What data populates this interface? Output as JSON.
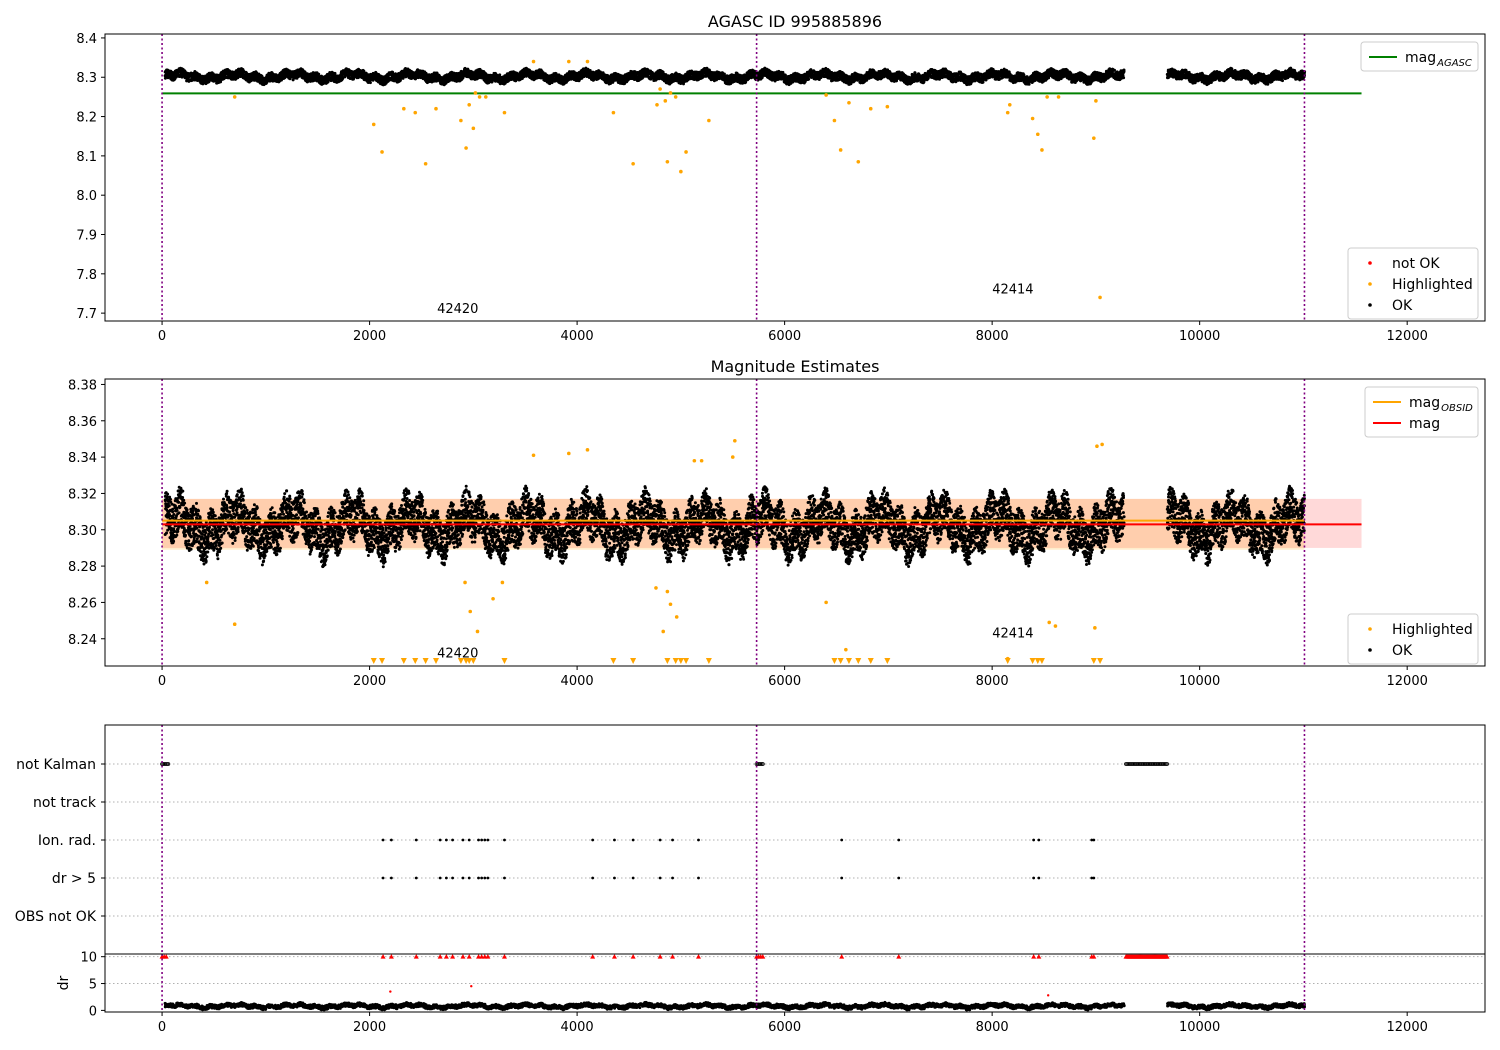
{
  "chart_data": [
    {
      "id": "p1",
      "type": "scatter",
      "title": "AGASC ID 995885896",
      "xlim": [
        -550,
        12750
      ],
      "ylim": [
        7.68,
        8.41
      ],
      "xticks": [
        0,
        2000,
        4000,
        6000,
        8000,
        10000,
        12000
      ],
      "yticks": [
        7.7,
        7.8,
        7.9,
        8.0,
        8.1,
        8.2,
        8.3,
        8.4
      ],
      "ytick_labels": [
        "7.7",
        "7.8",
        "7.9",
        "8.0",
        "8.1",
        "8.2",
        "8.3",
        "8.4"
      ],
      "grid": false,
      "vlines": [
        0,
        5730,
        11010
      ],
      "series_bands": [
        {
          "name": "OK",
          "color": "#000000",
          "x_ranges": [
            [
              30,
              9270
            ],
            [
              9690,
              11010
            ]
          ],
          "center": 8.302,
          "spread": 0.018
        }
      ],
      "hlines": [
        {
          "name": "mag_AGASC",
          "y": 8.259,
          "x_end": 11560,
          "color": "#008000"
        }
      ],
      "highlighted": {
        "color": "#ffa500",
        "x": [
          700,
          2040,
          2120,
          2330,
          2440,
          2540,
          2640,
          2880,
          2930,
          2960,
          3000,
          3020,
          3060,
          3120,
          3300,
          3580,
          3920,
          4100,
          4350,
          4540,
          4770,
          4800,
          4850,
          4870,
          4900,
          4950,
          5000,
          5050,
          5270,
          6400,
          6480,
          6540,
          6620,
          6710,
          6830,
          6990,
          8150,
          8170,
          8390,
          8440,
          8480,
          8530,
          8640,
          8980,
          9000,
          9040
        ],
        "y": [
          8.25,
          8.18,
          8.11,
          8.22,
          8.21,
          8.08,
          8.22,
          8.19,
          8.12,
          8.23,
          8.17,
          8.26,
          8.25,
          8.25,
          8.21,
          8.34,
          8.34,
          8.34,
          8.21,
          8.08,
          8.23,
          8.27,
          8.24,
          8.085,
          8.26,
          8.25,
          8.06,
          8.11,
          8.19,
          8.255,
          8.19,
          8.115,
          8.235,
          8.085,
          8.22,
          8.225,
          8.21,
          8.23,
          8.195,
          8.155,
          8.115,
          8.25,
          8.25,
          8.145,
          8.24,
          7.74
        ]
      },
      "not_ok": {
        "color": "#ff0000",
        "x": [],
        "y": []
      },
      "annotations": [
        {
          "text": "42420",
          "x": 2850,
          "y": 7.71
        },
        {
          "text": "42414",
          "x": 8200,
          "y": 7.76
        }
      ],
      "legend_top": [
        {
          "label": "mag",
          "sub": "AGASC",
          "color": "#008000",
          "kind": "line"
        }
      ],
      "legend_bottom": [
        {
          "label": "not OK",
          "color": "#ff0000"
        },
        {
          "label": "Highlighted",
          "color": "#ffa500"
        },
        {
          "label": "OK",
          "color": "#000000"
        }
      ]
    },
    {
      "id": "p2",
      "type": "scatter",
      "title": "Magnitude Estimates",
      "xlim": [
        -550,
        12750
      ],
      "ylim": [
        8.225,
        8.383
      ],
      "xticks": [
        0,
        2000,
        4000,
        6000,
        8000,
        10000,
        12000
      ],
      "yticks": [
        8.24,
        8.26,
        8.28,
        8.3,
        8.32,
        8.34,
        8.36,
        8.38
      ],
      "ytick_labels": [
        "8.24",
        "8.26",
        "8.28",
        "8.30",
        "8.32",
        "8.34",
        "8.36",
        "8.38"
      ],
      "grid": false,
      "vlines": [
        0,
        5730,
        11010
      ],
      "series_bands": [
        {
          "name": "OK",
          "color": "#000000",
          "x_ranges": [
            [
              30,
              9270
            ],
            [
              9690,
              11010
            ]
          ],
          "center": 8.302,
          "spread": 0.014
        }
      ],
      "bands": [
        {
          "name": "mag",
          "color": "#ff0000",
          "opacity": 0.15,
          "x0": 0,
          "x1": 11560,
          "y0": 8.29,
          "y1": 8.317
        },
        {
          "name": "mag_OBSID",
          "color": "#ffa500",
          "opacity": 0.2,
          "x0": 0,
          "x1": 11010,
          "y0": 8.289,
          "y1": 8.317
        }
      ],
      "hlines": [
        {
          "name": "mag",
          "y": 8.303,
          "x_end": 11560,
          "color": "#ff0000"
        },
        {
          "name": "mag_OBSID",
          "y": 8.305,
          "x_end": 11010,
          "color": "#ffa500"
        }
      ],
      "highlighted": {
        "color": "#ffa500",
        "x": [
          430,
          700,
          2920,
          2970,
          3040,
          3190,
          3280,
          3580,
          3920,
          4100,
          4760,
          4830,
          4870,
          4900,
          4960,
          5130,
          5200,
          5500,
          5520,
          6400,
          6590,
          8150,
          8550,
          8610,
          8990,
          9010,
          9060
        ],
        "y": [
          8.271,
          8.248,
          8.271,
          8.255,
          8.244,
          8.262,
          8.271,
          8.341,
          8.342,
          8.344,
          8.268,
          8.244,
          8.266,
          8.259,
          8.252,
          8.338,
          8.338,
          8.34,
          8.349,
          8.26,
          8.234,
          8.229,
          8.249,
          8.247,
          8.246,
          8.346,
          8.347
        ]
      },
      "below_markers": {
        "color": "#ffa500",
        "x": [
          2040,
          2120,
          2330,
          2440,
          2540,
          2640,
          2880,
          2930,
          2960,
          3000,
          3300,
          4350,
          4540,
          4870,
          4950,
          5000,
          5050,
          5270,
          6480,
          6540,
          6620,
          6710,
          6830,
          6990,
          8150,
          8390,
          8440,
          8480,
          8980,
          9040
        ]
      },
      "annotations": [
        {
          "text": "42420",
          "x": 2850,
          "y": 8.232
        },
        {
          "text": "42414",
          "x": 8200,
          "y": 8.243
        }
      ],
      "legend_top": [
        {
          "label": "mag",
          "sub": "OBSID",
          "color": "#ffa500",
          "kind": "line"
        },
        {
          "label": "mag",
          "sub": "",
          "color": "#ff0000",
          "kind": "line"
        }
      ],
      "legend_bottom": [
        {
          "label": "Highlighted",
          "color": "#ffa500"
        },
        {
          "label": "OK",
          "color": "#000000"
        }
      ]
    },
    {
      "id": "p3",
      "type": "scatter",
      "title": "",
      "xlim": [
        -550,
        12750
      ],
      "categories": [
        "not Kalman",
        "not track",
        "Ion. rad.",
        "dr > 5",
        "OBS not OK"
      ],
      "vlines": [
        0,
        5730,
        11010
      ],
      "flags": {
        "not Kalman": {
          "ranges": [
            [
              0,
              60
            ],
            [
              5730,
              5790
            ],
            [
              9290,
              9690
            ]
          ]
        },
        "not track": {
          "ranges": []
        },
        "Ion. rad.": {
          "x": [
            2130,
            2210,
            2450,
            2680,
            2740,
            2800,
            2900,
            2960,
            3050,
            3080,
            3110,
            3140,
            3300,
            4150,
            4360,
            4540,
            4800,
            4920,
            5170,
            6550,
            7100,
            8400,
            8450,
            8960,
            8980
          ]
        },
        "dr > 5": {
          "x": [
            2130,
            2210,
            2450,
            2680,
            2740,
            2800,
            2900,
            2960,
            3050,
            3080,
            3110,
            3140,
            3300,
            4150,
            4360,
            4540,
            4800,
            4920,
            5170,
            6550,
            7100,
            8400,
            8450,
            8960,
            8980
          ]
        },
        "OBS not OK": {
          "ranges": []
        }
      }
    },
    {
      "id": "p4",
      "type": "scatter",
      "ylabel": "dr",
      "xlim": [
        -550,
        12750
      ],
      "ylim": [
        -0.3,
        10.5
      ],
      "xticks": [
        0,
        2000,
        4000,
        6000,
        8000,
        10000,
        12000
      ],
      "yticks": [
        0,
        5,
        10
      ],
      "ytick_labels": [
        "0",
        "5",
        "10"
      ],
      "vlines": [
        0,
        5730,
        11010
      ],
      "capped_markers": {
        "color": "#ff0000",
        "y": 10,
        "x": [
          0,
          20,
          40,
          2130,
          2210,
          2450,
          2680,
          2740,
          2800,
          2900,
          2960,
          3050,
          3080,
          3110,
          3140,
          3300,
          4150,
          4360,
          4540,
          4800,
          4920,
          5170,
          5730,
          5750,
          5770,
          5790,
          6550,
          7100,
          8400,
          8450,
          8960,
          8980
        ],
        "range": [
          9290,
          9690
        ]
      },
      "outliers": {
        "color": "#ff0000",
        "x": [
          2200,
          2980,
          8540
        ],
        "y": [
          3.5,
          4.5,
          2.8
        ]
      },
      "series_bands": [
        {
          "name": "OK",
          "color": "#000000",
          "x_ranges": [
            [
              30,
              9270
            ],
            [
              9690,
              11010
            ]
          ],
          "center": 0.8,
          "spread": 0.6
        }
      ]
    }
  ]
}
